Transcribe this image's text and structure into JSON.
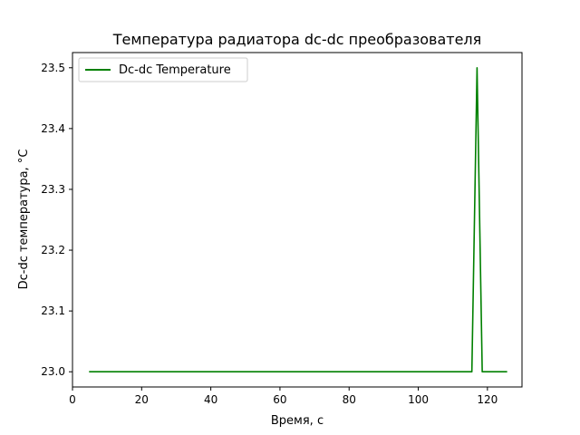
{
  "chart_data": {
    "type": "line",
    "title": "Температура радиатора dc-dc преобразователя",
    "xlabel": "Время, с",
    "ylabel": "Dc-dc температура, °C",
    "xlim": [
      0,
      130
    ],
    "ylim": [
      22.975,
      23.525
    ],
    "xticks": [
      0,
      20,
      40,
      60,
      80,
      100,
      120
    ],
    "yticks": [
      23.0,
      23.1,
      23.2,
      23.3,
      23.4,
      23.5
    ],
    "xtick_labels": [
      "0",
      "20",
      "40",
      "60",
      "80",
      "100",
      "120"
    ],
    "ytick_labels": [
      "23.0",
      "23.1",
      "23.2",
      "23.3",
      "23.4",
      "23.5"
    ],
    "grid": false,
    "legend_position": "upper-left",
    "series": [
      {
        "name": "Dc-dc Temperature",
        "color": "#008000",
        "x": [
          5,
          115.5,
          117,
          118.5,
          125.5
        ],
        "y": [
          23.0,
          23.0,
          23.5,
          23.0,
          23.0
        ]
      }
    ]
  }
}
